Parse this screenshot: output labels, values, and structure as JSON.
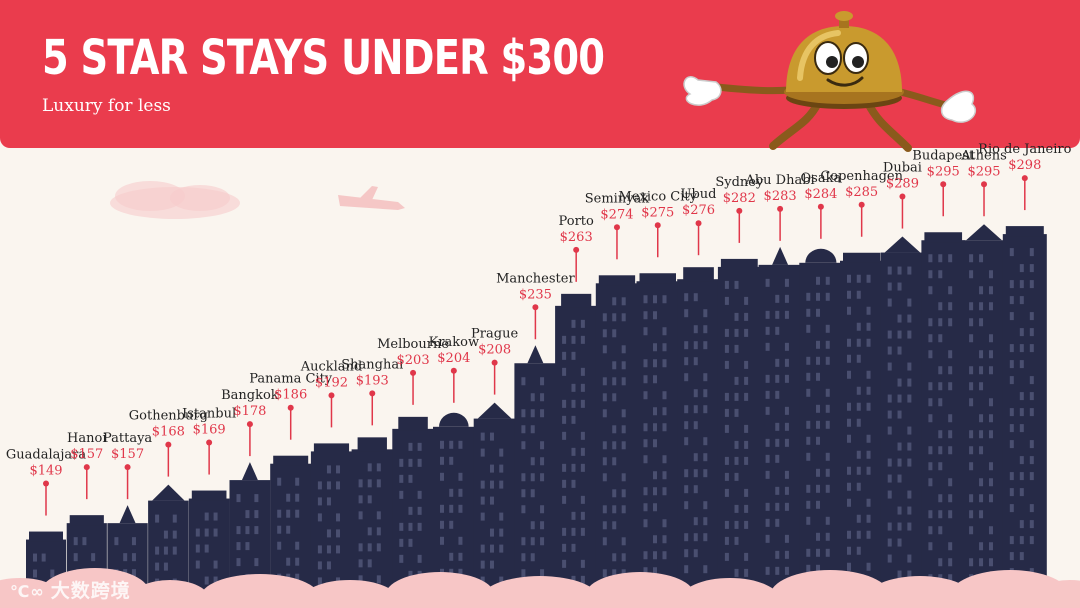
{
  "header": {
    "title": "5 STAR STAYS UNDER $300",
    "subtitle": "Luxury for less"
  },
  "watermark": {
    "text": "大数跨境"
  },
  "colors": {
    "header_bg": "#ea3c4d",
    "page_bg": "#faf5ef",
    "building": "#262a47",
    "window": "#4a4f70",
    "label": "#232323",
    "price": "#e0374a",
    "cloud": "#f7c6c6"
  },
  "chart_data": {
    "type": "bar",
    "title": "5 STAR STAYS UNDER $300",
    "subtitle": "Luxury for less",
    "value_prefix": "$",
    "categories": [
      "Guadalajara",
      "Hanoi",
      "Pattaya",
      "Gothenburg",
      "Istanbul",
      "Bangkok",
      "Panama City",
      "Auckland",
      "Shanghai",
      "Melbourne",
      "Krakow",
      "Prague",
      "Manchester",
      "Porto",
      "Seminyak",
      "Mexico City",
      "Ubud",
      "Sydney",
      "Abu Dhabi",
      "Osaka",
      "Copenhagen",
      "Dubai",
      "Budapest",
      "Athens",
      "Rio de Janeiro"
    ],
    "values": [
      149,
      157,
      157,
      168,
      169,
      178,
      186,
      192,
      193,
      203,
      204,
      208,
      235,
      263,
      274,
      275,
      276,
      282,
      283,
      284,
      285,
      289,
      295,
      295,
      298
    ],
    "sorted": "ascending"
  }
}
